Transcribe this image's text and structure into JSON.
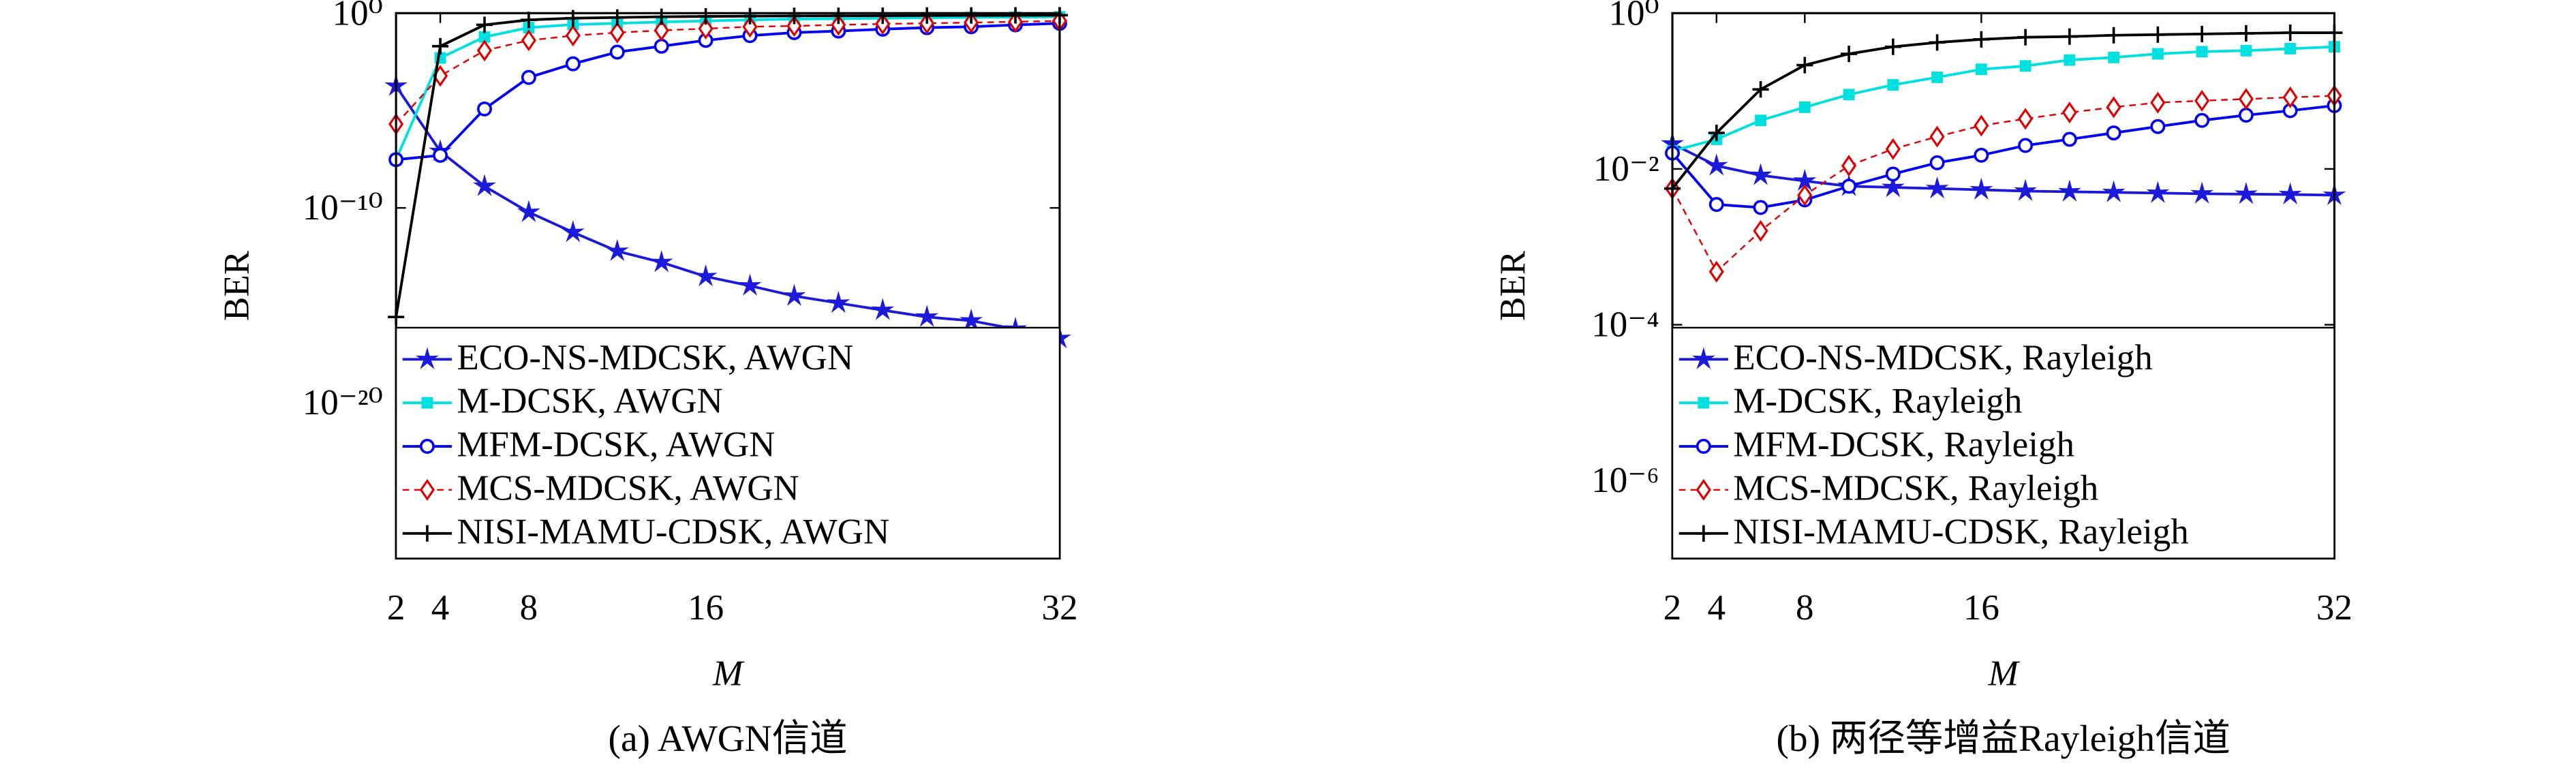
{
  "chart_data": [
    {
      "type": "line",
      "caption": "(a) AWGN信道",
      "xlabel": "M",
      "ylabel": "BER",
      "log_y": true,
      "legend": "lower left",
      "x": [
        2,
        4,
        6,
        8,
        10,
        12,
        14,
        16,
        18,
        20,
        22,
        24,
        26,
        28,
        30,
        32
      ],
      "xlim": [
        2,
        32
      ],
      "xticks": [
        2,
        4,
        8,
        16,
        32
      ],
      "ylim": [
        1e-28,
        1
      ],
      "yticks": [
        {
          "value": 1e-20,
          "label": "10⁻²⁰"
        },
        {
          "value": 1e-10,
          "label": "10⁻¹⁰"
        },
        {
          "value": 1,
          "label": "10⁰"
        }
      ],
      "series": [
        {
          "name": "ECO-NS-MDCSK, AWGN",
          "color": "#1a1ad8",
          "marker": "star",
          "dash": false,
          "values": [
            0.00018,
            8e-08,
            1.3e-09,
            6e-11,
            5.6e-12,
            6e-13,
            1.6e-13,
            3e-14,
            1e-14,
            3e-15,
            1.3e-15,
            5.6e-16,
            2.5e-16,
            1.6e-16,
            6e-17,
            2e-17
          ]
        },
        {
          "name": "M-DCSK, AWGN",
          "color": "#00e0e0",
          "marker": "square",
          "dash": false,
          "values": [
            3e-08,
            0.005,
            0.06,
            0.18,
            0.26,
            0.3,
            0.35,
            0.4,
            0.45,
            0.5,
            0.52,
            0.55,
            0.58,
            0.6,
            0.62,
            0.65
          ]
        },
        {
          "name": "MFM-DCSK, AWGN",
          "color": "#0000ee",
          "marker": "circle",
          "dash": false,
          "values": [
            3e-08,
            5e-08,
            1.2e-05,
            0.0005,
            0.0025,
            0.01,
            0.02,
            0.04,
            0.07,
            0.1,
            0.12,
            0.15,
            0.18,
            0.2,
            0.25,
            0.3
          ]
        },
        {
          "name": "MCS-MDCSK, AWGN",
          "color": "#dd0000",
          "marker": "diamond",
          "dash": true,
          "values": [
            2e-06,
            0.0006,
            0.012,
            0.04,
            0.07,
            0.1,
            0.13,
            0.16,
            0.2,
            0.22,
            0.25,
            0.28,
            0.3,
            0.33,
            0.36,
            0.4
          ]
        },
        {
          "name": "NISI-MAMU-CDSK, AWGN",
          "color": "#000000",
          "marker": "plus",
          "dash": false,
          "values": [
            2.5e-16,
            0.02,
            0.25,
            0.45,
            0.55,
            0.6,
            0.65,
            0.68,
            0.7,
            0.72,
            0.73,
            0.74,
            0.75,
            0.76,
            0.77,
            0.78
          ]
        }
      ]
    },
    {
      "type": "line",
      "caption": "(b) 两径等增益Rayleigh信道",
      "xlabel": "M",
      "ylabel": "BER",
      "log_y": true,
      "legend": "lower left",
      "x": [
        2,
        4,
        6,
        8,
        10,
        12,
        14,
        16,
        18,
        20,
        22,
        24,
        26,
        28,
        30,
        32
      ],
      "xlim": [
        2,
        32
      ],
      "xticks": [
        2,
        4,
        8,
        16,
        32
      ],
      "ylim": [
        1e-07,
        1
      ],
      "yticks": [
        {
          "value": 1e-06,
          "label": "10⁻⁶"
        },
        {
          "value": 0.0001,
          "label": "10⁻⁴"
        },
        {
          "value": 0.01,
          "label": "10⁻²"
        },
        {
          "value": 1,
          "label": "10⁰"
        }
      ],
      "series": [
        {
          "name": "ECO-NS-MDCSK, Rayleigh",
          "color": "#1a1ad8",
          "marker": "star",
          "dash": false,
          "values": [
            0.021,
            0.011,
            0.0083,
            0.007,
            0.006,
            0.0058,
            0.0056,
            0.0054,
            0.0052,
            0.0051,
            0.005,
            0.0049,
            0.0048,
            0.00475,
            0.0047,
            0.0046
          ]
        },
        {
          "name": "M-DCSK, Rayleigh",
          "color": "#00e0e0",
          "marker": "square",
          "dash": false,
          "values": [
            0.017,
            0.024,
            0.042,
            0.062,
            0.09,
            0.12,
            0.15,
            0.19,
            0.21,
            0.25,
            0.27,
            0.3,
            0.32,
            0.33,
            0.35,
            0.37
          ]
        },
        {
          "name": "MFM-DCSK, Rayleigh",
          "color": "#0000ee",
          "marker": "circle",
          "dash": false,
          "values": [
            0.016,
            0.0035,
            0.0032,
            0.004,
            0.006,
            0.0086,
            0.012,
            0.015,
            0.02,
            0.024,
            0.029,
            0.035,
            0.042,
            0.049,
            0.056,
            0.065
          ]
        },
        {
          "name": "MCS-MDCSK, Rayleigh",
          "color": "#dd0000",
          "marker": "diamond",
          "dash": true,
          "values": [
            0.0056,
            0.00048,
            0.0016,
            0.0046,
            0.011,
            0.018,
            0.026,
            0.036,
            0.044,
            0.053,
            0.062,
            0.071,
            0.075,
            0.079,
            0.083,
            0.087
          ]
        },
        {
          "name": "NISI-MAMU-CDSK, Rayleigh",
          "color": "#000000",
          "marker": "plus",
          "dash": false,
          "values": [
            0.0056,
            0.029,
            0.105,
            0.215,
            0.3,
            0.37,
            0.42,
            0.46,
            0.49,
            0.5,
            0.52,
            0.53,
            0.54,
            0.55,
            0.56,
            0.56
          ]
        }
      ]
    }
  ]
}
